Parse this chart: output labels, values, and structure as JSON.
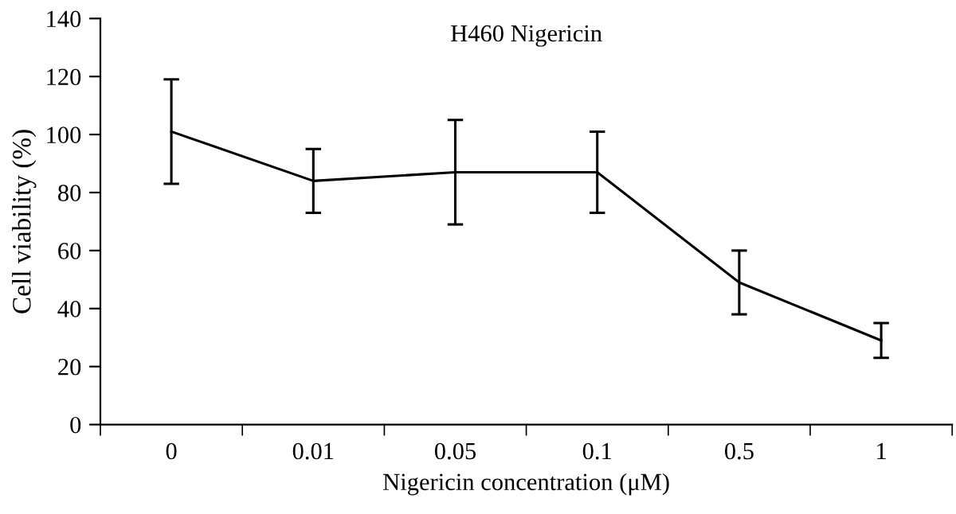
{
  "chart_data": {
    "type": "line",
    "title": "H460 Nigericin",
    "xlabel": "Nigericin concentration (μM)",
    "ylabel": "Cell viability (%)",
    "categories": [
      "0",
      "0.01",
      "0.05",
      "0.1",
      "0.5",
      "1"
    ],
    "series": [
      {
        "color": "#000000",
        "values": [
          101,
          84,
          87,
          87,
          49,
          29
        ],
        "errors": [
          18,
          11,
          18,
          14,
          11,
          6
        ]
      }
    ],
    "ylim": [
      0,
      140
    ],
    "yticks": [
      0,
      20,
      40,
      60,
      80,
      100,
      120,
      140
    ],
    "grid": false,
    "legend": false,
    "marker": "none",
    "line_style": "solid"
  }
}
